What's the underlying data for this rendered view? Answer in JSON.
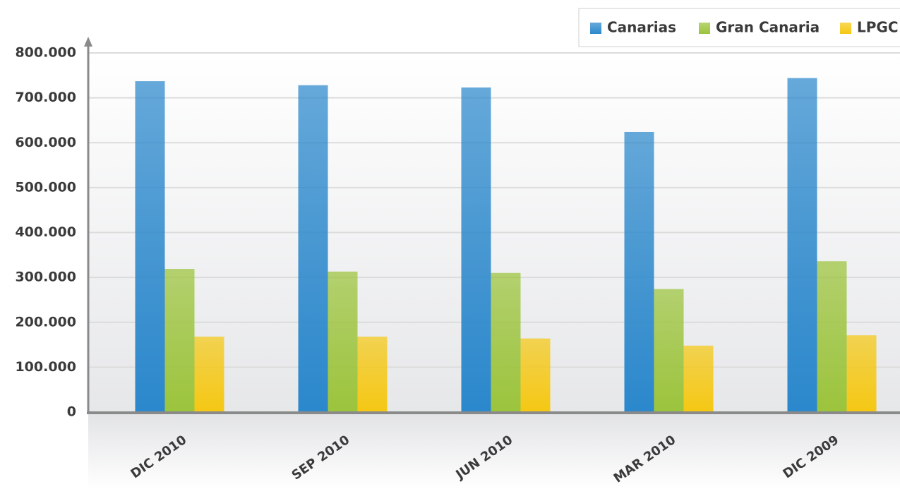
{
  "chart_data": {
    "type": "bar",
    "categories": [
      "DIC 2010",
      "SEP 2010",
      "JUN 2010",
      "MAR 2010",
      "DIC 2009"
    ],
    "series": [
      {
        "name": "Canarias",
        "color": "#2b88cc",
        "values": [
          737000,
          728000,
          723000,
          624000,
          744000
        ]
      },
      {
        "name": "Gran Canaria",
        "color": "#9cc43c",
        "values": [
          319000,
          313000,
          310000,
          274000,
          336000
        ]
      },
      {
        "name": "LPGC",
        "color": "#f5c814",
        "values": [
          168000,
          168000,
          164000,
          148000,
          171000
        ]
      }
    ],
    "ylim": [
      0,
      800000
    ],
    "yticks": [
      0,
      {
        "value": 100000,
        "label": "100.000"
      },
      {
        "value": 200000,
        "label": "200.000"
      },
      {
        "value": 300000,
        "label": "300.000"
      },
      {
        "value": 400000,
        "label": "400.000"
      },
      {
        "value": 500000,
        "label": "500.000"
      },
      {
        "value": 600000,
        "label": "600.000"
      },
      {
        "value": 700000,
        "label": "700.000"
      },
      {
        "value": 800000,
        "label": "800.000"
      }
    ],
    "grid": true,
    "legend": "top-right"
  }
}
